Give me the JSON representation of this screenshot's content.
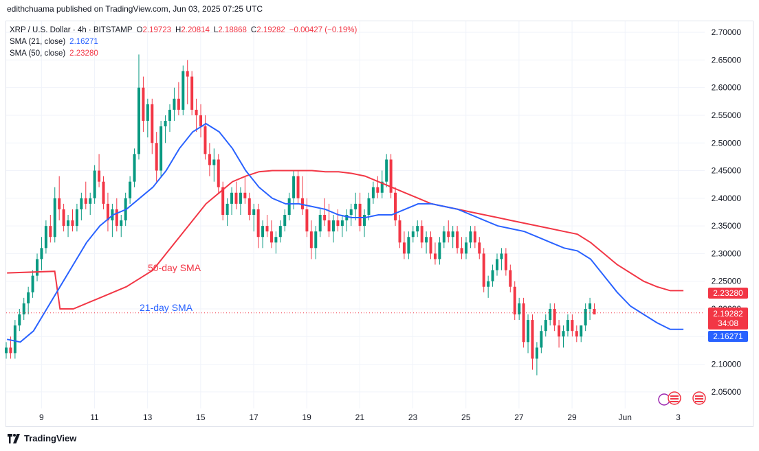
{
  "header": {
    "publisher": "edithchuama published on TradingView.com, Jun 03, 2025 07:25 UTC"
  },
  "legend": {
    "symbol": "XRP / U.S. Dollar · 4h · BITSTAMP",
    "ohlc": [
      {
        "label": "O",
        "value": "2.19723"
      },
      {
        "label": "H",
        "value": "2.20814"
      },
      {
        "label": "L",
        "value": "2.18868"
      },
      {
        "label": "C",
        "value": "2.19282"
      }
    ],
    "change": "−0.00427 (−0.19%)",
    "sma21_label": "SMA (21, close)",
    "sma21_value": "2.16271",
    "sma50_label": "SMA (50, close)",
    "sma50_value": "2.23280"
  },
  "annotations": {
    "sma50": "50-day SMA",
    "sma21": "21-day SMA"
  },
  "price_tags": {
    "sma50": "2.23280",
    "last_price": "2.19282",
    "countdown": "34:08",
    "sma21": "2.16271"
  },
  "footer": {
    "brand": "TradingView"
  },
  "colors": {
    "up": "#089981",
    "down": "#f23645",
    "sma21": "#2962ff",
    "sma50": "#f23645",
    "grid": "#f0f3fa"
  },
  "chart_data": {
    "type": "candlestick",
    "ylim": [
      2.02,
      2.72
    ],
    "y_ticks": [
      "2.70000",
      "2.65000",
      "2.60000",
      "2.55000",
      "2.50000",
      "2.45000",
      "2.40000",
      "2.35000",
      "2.30000",
      "2.25000",
      "2.20000",
      "2.15000",
      "2.10000",
      "2.05000"
    ],
    "x_ticks": [
      "9",
      "11",
      "13",
      "15",
      "17",
      "19",
      "21",
      "23",
      "25",
      "27",
      "29",
      "Jun",
      "3"
    ],
    "x_tick_days": [
      9,
      11,
      13,
      15,
      17,
      19,
      21,
      23,
      25,
      27,
      29,
      31,
      33
    ],
    "x_range_days": [
      7.67,
      34.0
    ],
    "candle_days_start": 7.67,
    "candle_interval_days": 0.1667,
    "candles": [
      [
        2.12,
        2.14,
        2.11,
        2.13
      ],
      [
        2.13,
        2.15,
        2.11,
        2.12
      ],
      [
        2.12,
        2.18,
        2.11,
        2.17
      ],
      [
        2.17,
        2.2,
        2.16,
        2.19
      ],
      [
        2.19,
        2.22,
        2.18,
        2.21
      ],
      [
        2.21,
        2.24,
        2.19,
        2.23
      ],
      [
        2.23,
        2.27,
        2.22,
        2.26
      ],
      [
        2.26,
        2.3,
        2.25,
        2.29
      ],
      [
        2.29,
        2.33,
        2.27,
        2.31
      ],
      [
        2.31,
        2.36,
        2.3,
        2.35
      ],
      [
        2.35,
        2.37,
        2.32,
        2.33
      ],
      [
        2.33,
        2.42,
        2.32,
        2.4
      ],
      [
        2.4,
        2.44,
        2.36,
        2.38
      ],
      [
        2.38,
        2.39,
        2.34,
        2.35
      ],
      [
        2.35,
        2.37,
        2.33,
        2.36
      ],
      [
        2.36,
        2.38,
        2.34,
        2.35
      ],
      [
        2.35,
        2.39,
        2.34,
        2.38
      ],
      [
        2.38,
        2.41,
        2.36,
        2.4
      ],
      [
        2.4,
        2.43,
        2.38,
        2.39
      ],
      [
        2.39,
        2.41,
        2.37,
        2.4
      ],
      [
        2.4,
        2.46,
        2.39,
        2.45
      ],
      [
        2.45,
        2.48,
        2.42,
        2.43
      ],
      [
        2.43,
        2.44,
        2.38,
        2.39
      ],
      [
        2.39,
        2.41,
        2.34,
        2.36
      ],
      [
        2.36,
        2.39,
        2.33,
        2.38
      ],
      [
        2.38,
        2.4,
        2.34,
        2.35
      ],
      [
        2.35,
        2.37,
        2.33,
        2.36
      ],
      [
        2.36,
        2.41,
        2.35,
        2.4
      ],
      [
        2.4,
        2.44,
        2.39,
        2.43
      ],
      [
        2.43,
        2.49,
        2.42,
        2.48
      ],
      [
        2.48,
        2.66,
        2.47,
        2.6
      ],
      [
        2.6,
        2.62,
        2.52,
        2.54
      ],
      [
        2.54,
        2.58,
        2.51,
        2.57
      ],
      [
        2.57,
        2.58,
        2.48,
        2.5
      ],
      [
        2.5,
        2.52,
        2.43,
        2.45
      ],
      [
        2.45,
        2.54,
        2.44,
        2.53
      ],
      [
        2.53,
        2.55,
        2.5,
        2.54
      ],
      [
        2.54,
        2.57,
        2.52,
        2.56
      ],
      [
        2.56,
        2.6,
        2.54,
        2.58
      ],
      [
        2.58,
        2.61,
        2.55,
        2.56
      ],
      [
        2.56,
        2.64,
        2.55,
        2.63
      ],
      [
        2.63,
        2.65,
        2.57,
        2.62
      ],
      [
        2.62,
        2.63,
        2.55,
        2.56
      ],
      [
        2.56,
        2.58,
        2.52,
        2.55
      ],
      [
        2.55,
        2.57,
        2.51,
        2.53
      ],
      [
        2.53,
        2.55,
        2.47,
        2.48
      ],
      [
        2.48,
        2.5,
        2.44,
        2.46
      ],
      [
        2.46,
        2.49,
        2.43,
        2.47
      ],
      [
        2.47,
        2.48,
        2.41,
        2.42
      ],
      [
        2.42,
        2.43,
        2.36,
        2.37
      ],
      [
        2.37,
        2.4,
        2.35,
        2.39
      ],
      [
        2.39,
        2.42,
        2.37,
        2.41
      ],
      [
        2.41,
        2.43,
        2.38,
        2.39
      ],
      [
        2.39,
        2.42,
        2.37,
        2.41
      ],
      [
        2.41,
        2.44,
        2.39,
        2.4
      ],
      [
        2.4,
        2.41,
        2.36,
        2.37
      ],
      [
        2.37,
        2.39,
        2.34,
        2.38
      ],
      [
        2.38,
        2.39,
        2.31,
        2.33
      ],
      [
        2.33,
        2.36,
        2.31,
        2.35
      ],
      [
        2.35,
        2.37,
        2.33,
        2.34
      ],
      [
        2.34,
        2.36,
        2.31,
        2.32
      ],
      [
        2.32,
        2.34,
        2.3,
        2.33
      ],
      [
        2.33,
        2.36,
        2.32,
        2.35
      ],
      [
        2.35,
        2.38,
        2.34,
        2.37
      ],
      [
        2.37,
        2.41,
        2.36,
        2.4
      ],
      [
        2.4,
        2.45,
        2.38,
        2.44
      ],
      [
        2.44,
        2.45,
        2.39,
        2.4
      ],
      [
        2.4,
        2.44,
        2.37,
        2.38
      ],
      [
        2.38,
        2.4,
        2.33,
        2.34
      ],
      [
        2.34,
        2.36,
        2.29,
        2.31
      ],
      [
        2.31,
        2.35,
        2.29,
        2.34
      ],
      [
        2.34,
        2.38,
        2.33,
        2.37
      ],
      [
        2.37,
        2.4,
        2.35,
        2.36
      ],
      [
        2.36,
        2.39,
        2.33,
        2.34
      ],
      [
        2.34,
        2.37,
        2.32,
        2.36
      ],
      [
        2.36,
        2.38,
        2.34,
        2.35
      ],
      [
        2.35,
        2.37,
        2.33,
        2.36
      ],
      [
        2.36,
        2.38,
        2.34,
        2.37
      ],
      [
        2.37,
        2.39,
        2.35,
        2.38
      ],
      [
        2.38,
        2.41,
        2.36,
        2.39
      ],
      [
        2.39,
        2.41,
        2.34,
        2.35
      ],
      [
        2.35,
        2.38,
        2.33,
        2.37
      ],
      [
        2.37,
        2.41,
        2.36,
        2.4
      ],
      [
        2.4,
        2.43,
        2.39,
        2.42
      ],
      [
        2.42,
        2.44,
        2.4,
        2.41
      ],
      [
        2.41,
        2.45,
        2.4,
        2.43
      ],
      [
        2.43,
        2.48,
        2.42,
        2.47
      ],
      [
        2.47,
        2.48,
        2.4,
        2.41
      ],
      [
        2.41,
        2.42,
        2.35,
        2.36
      ],
      [
        2.36,
        2.37,
        2.31,
        2.32
      ],
      [
        2.32,
        2.34,
        2.29,
        2.3
      ],
      [
        2.3,
        2.34,
        2.29,
        2.33
      ],
      [
        2.33,
        2.35,
        2.32,
        2.34
      ],
      [
        2.34,
        2.36,
        2.33,
        2.35
      ],
      [
        2.35,
        2.36,
        2.31,
        2.32
      ],
      [
        2.32,
        2.34,
        2.3,
        2.33
      ],
      [
        2.33,
        2.34,
        2.29,
        2.3
      ],
      [
        2.3,
        2.32,
        2.28,
        2.29
      ],
      [
        2.29,
        2.33,
        2.28,
        2.32
      ],
      [
        2.32,
        2.35,
        2.31,
        2.34
      ],
      [
        2.34,
        2.36,
        2.32,
        2.33
      ],
      [
        2.33,
        2.35,
        2.31,
        2.34
      ],
      [
        2.34,
        2.35,
        2.3,
        2.31
      ],
      [
        2.31,
        2.33,
        2.29,
        2.3
      ],
      [
        2.3,
        2.33,
        2.29,
        2.32
      ],
      [
        2.32,
        2.35,
        2.31,
        2.34
      ],
      [
        2.34,
        2.35,
        2.31,
        2.32
      ],
      [
        2.32,
        2.33,
        2.29,
        2.3
      ],
      [
        2.3,
        2.31,
        2.23,
        2.24
      ],
      [
        2.24,
        2.26,
        2.22,
        2.25
      ],
      [
        2.25,
        2.28,
        2.24,
        2.27
      ],
      [
        2.27,
        2.3,
        2.26,
        2.29
      ],
      [
        2.29,
        2.31,
        2.27,
        2.3
      ],
      [
        2.3,
        2.31,
        2.26,
        2.27
      ],
      [
        2.27,
        2.28,
        2.23,
        2.24
      ],
      [
        2.24,
        2.25,
        2.18,
        2.19
      ],
      [
        2.19,
        2.22,
        2.18,
        2.21
      ],
      [
        2.21,
        2.22,
        2.13,
        2.14
      ],
      [
        2.14,
        2.19,
        2.12,
        2.18
      ],
      [
        2.18,
        2.19,
        2.09,
        2.11
      ],
      [
        2.11,
        2.14,
        2.08,
        2.13
      ],
      [
        2.13,
        2.17,
        2.12,
        2.16
      ],
      [
        2.16,
        2.19,
        2.15,
        2.18
      ],
      [
        2.18,
        2.21,
        2.17,
        2.2
      ],
      [
        2.2,
        2.21,
        2.16,
        2.17
      ],
      [
        2.17,
        2.18,
        2.13,
        2.15
      ],
      [
        2.15,
        2.17,
        2.13,
        2.16
      ],
      [
        2.16,
        2.19,
        2.15,
        2.18
      ],
      [
        2.18,
        2.19,
        2.15,
        2.16
      ],
      [
        2.16,
        2.17,
        2.14,
        2.15
      ],
      [
        2.15,
        2.17,
        2.14,
        2.17
      ],
      [
        2.17,
        2.21,
        2.16,
        2.2
      ],
      [
        2.2,
        2.22,
        2.18,
        2.21
      ],
      [
        2.2,
        2.21,
        2.19,
        2.19
      ]
    ],
    "sma21": [
      [
        7.7,
        2.145
      ],
      [
        8.2,
        2.14
      ],
      [
        8.7,
        2.16
      ],
      [
        9.2,
        2.2
      ],
      [
        9.7,
        2.24
      ],
      [
        10.2,
        2.28
      ],
      [
        10.7,
        2.32
      ],
      [
        11.2,
        2.35
      ],
      [
        11.7,
        2.37
      ],
      [
        12.2,
        2.38
      ],
      [
        12.7,
        2.4
      ],
      [
        13.2,
        2.42
      ],
      [
        13.7,
        2.45
      ],
      [
        14.2,
        2.49
      ],
      [
        14.7,
        2.52
      ],
      [
        15.2,
        2.535
      ],
      [
        15.7,
        2.52
      ],
      [
        16.2,
        2.49
      ],
      [
        16.7,
        2.45
      ],
      [
        17.2,
        2.42
      ],
      [
        17.7,
        2.4
      ],
      [
        18.2,
        2.39
      ],
      [
        18.7,
        2.39
      ],
      [
        19.2,
        2.385
      ],
      [
        19.7,
        2.38
      ],
      [
        20.2,
        2.37
      ],
      [
        20.7,
        2.365
      ],
      [
        21.2,
        2.365
      ],
      [
        21.7,
        2.37
      ],
      [
        22.2,
        2.37
      ],
      [
        22.7,
        2.38
      ],
      [
        23.2,
        2.39
      ],
      [
        23.7,
        2.39
      ],
      [
        24.2,
        2.385
      ],
      [
        24.7,
        2.38
      ],
      [
        25.2,
        2.37
      ],
      [
        25.7,
        2.36
      ],
      [
        26.2,
        2.35
      ],
      [
        26.7,
        2.345
      ],
      [
        27.2,
        2.34
      ],
      [
        27.7,
        2.33
      ],
      [
        28.2,
        2.32
      ],
      [
        28.7,
        2.31
      ],
      [
        29.2,
        2.305
      ],
      [
        29.7,
        2.29
      ],
      [
        30.2,
        2.26
      ],
      [
        30.7,
        2.23
      ],
      [
        31.2,
        2.205
      ],
      [
        31.7,
        2.19
      ],
      [
        32.2,
        2.175
      ],
      [
        32.7,
        2.163
      ],
      [
        33.2,
        2.163
      ]
    ],
    "sma50": [
      [
        7.7,
        2.265
      ],
      [
        9.5,
        2.268
      ],
      [
        9.7,
        2.2
      ],
      [
        10.2,
        2.2
      ],
      [
        10.7,
        2.21
      ],
      [
        11.2,
        2.22
      ],
      [
        11.7,
        2.23
      ],
      [
        12.2,
        2.24
      ],
      [
        12.7,
        2.255
      ],
      [
        13.2,
        2.27
      ],
      [
        13.7,
        2.3
      ],
      [
        14.2,
        2.33
      ],
      [
        14.7,
        2.36
      ],
      [
        15.2,
        2.39
      ],
      [
        15.7,
        2.41
      ],
      [
        16.2,
        2.43
      ],
      [
        16.7,
        2.44
      ],
      [
        17.2,
        2.448
      ],
      [
        17.7,
        2.45
      ],
      [
        18.2,
        2.45
      ],
      [
        18.7,
        2.45
      ],
      [
        19.2,
        2.45
      ],
      [
        19.7,
        2.448
      ],
      [
        20.2,
        2.448
      ],
      [
        20.7,
        2.445
      ],
      [
        21.2,
        2.44
      ],
      [
        21.7,
        2.43
      ],
      [
        22.2,
        2.42
      ],
      [
        22.7,
        2.41
      ],
      [
        23.2,
        2.4
      ],
      [
        23.7,
        2.39
      ],
      [
        24.2,
        2.385
      ],
      [
        24.7,
        2.38
      ],
      [
        25.2,
        2.375
      ],
      [
        25.7,
        2.37
      ],
      [
        26.2,
        2.365
      ],
      [
        26.7,
        2.36
      ],
      [
        27.2,
        2.355
      ],
      [
        27.7,
        2.35
      ],
      [
        28.2,
        2.345
      ],
      [
        28.7,
        2.34
      ],
      [
        29.2,
        2.335
      ],
      [
        29.7,
        2.32
      ],
      [
        30.2,
        2.3
      ],
      [
        30.7,
        2.28
      ],
      [
        31.2,
        2.265
      ],
      [
        31.7,
        2.25
      ],
      [
        32.2,
        2.24
      ],
      [
        32.7,
        2.233
      ],
      [
        33.2,
        2.233
      ]
    ]
  }
}
